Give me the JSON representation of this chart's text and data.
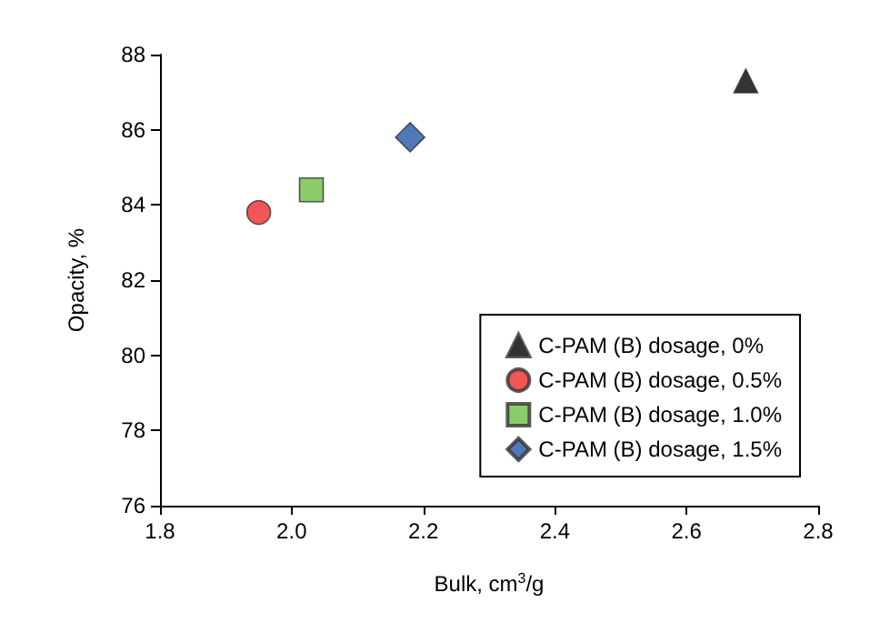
{
  "chart_data": {
    "type": "scatter",
    "xlabel": "Bulk, cm$^{3}$/g",
    "ylabel": "Opacity, %",
    "series": [
      {
        "name": "C-PAM (B) dosage, 0%",
        "color": "#000000",
        "marker": "triangle",
        "x": [
          2.69
        ],
        "values": [
          87.3
        ]
      },
      {
        "name": "C-PAM (B) dosage, 0.5%",
        "color": "#ee2a2a",
        "marker": "circle",
        "x": [
          1.95
        ],
        "values": [
          83.8
        ]
      },
      {
        "name": "C-PAM (B) dosage, 1.0%",
        "color": "#6dbf45",
        "marker": "square",
        "x": [
          2.03
        ],
        "values": [
          84.4
        ]
      },
      {
        "name": "C-PAM (B) dosage, 1.5%",
        "color": "#2457a8",
        "marker": "diamond",
        "x": [
          2.18
        ],
        "values": [
          85.8
        ]
      }
    ],
    "xlim": [
      1.8,
      2.8
    ],
    "xticks": [
      1.8,
      {
        "value": 2,
        "label": "2.0"
      },
      2.2,
      2.4,
      2.6,
      2.8
    ],
    "ylim": [
      76,
      88
    ],
    "yticks": [
      76,
      78,
      80,
      82,
      84,
      86,
      88
    ],
    "grid": false,
    "legend": "bottom right"
  }
}
